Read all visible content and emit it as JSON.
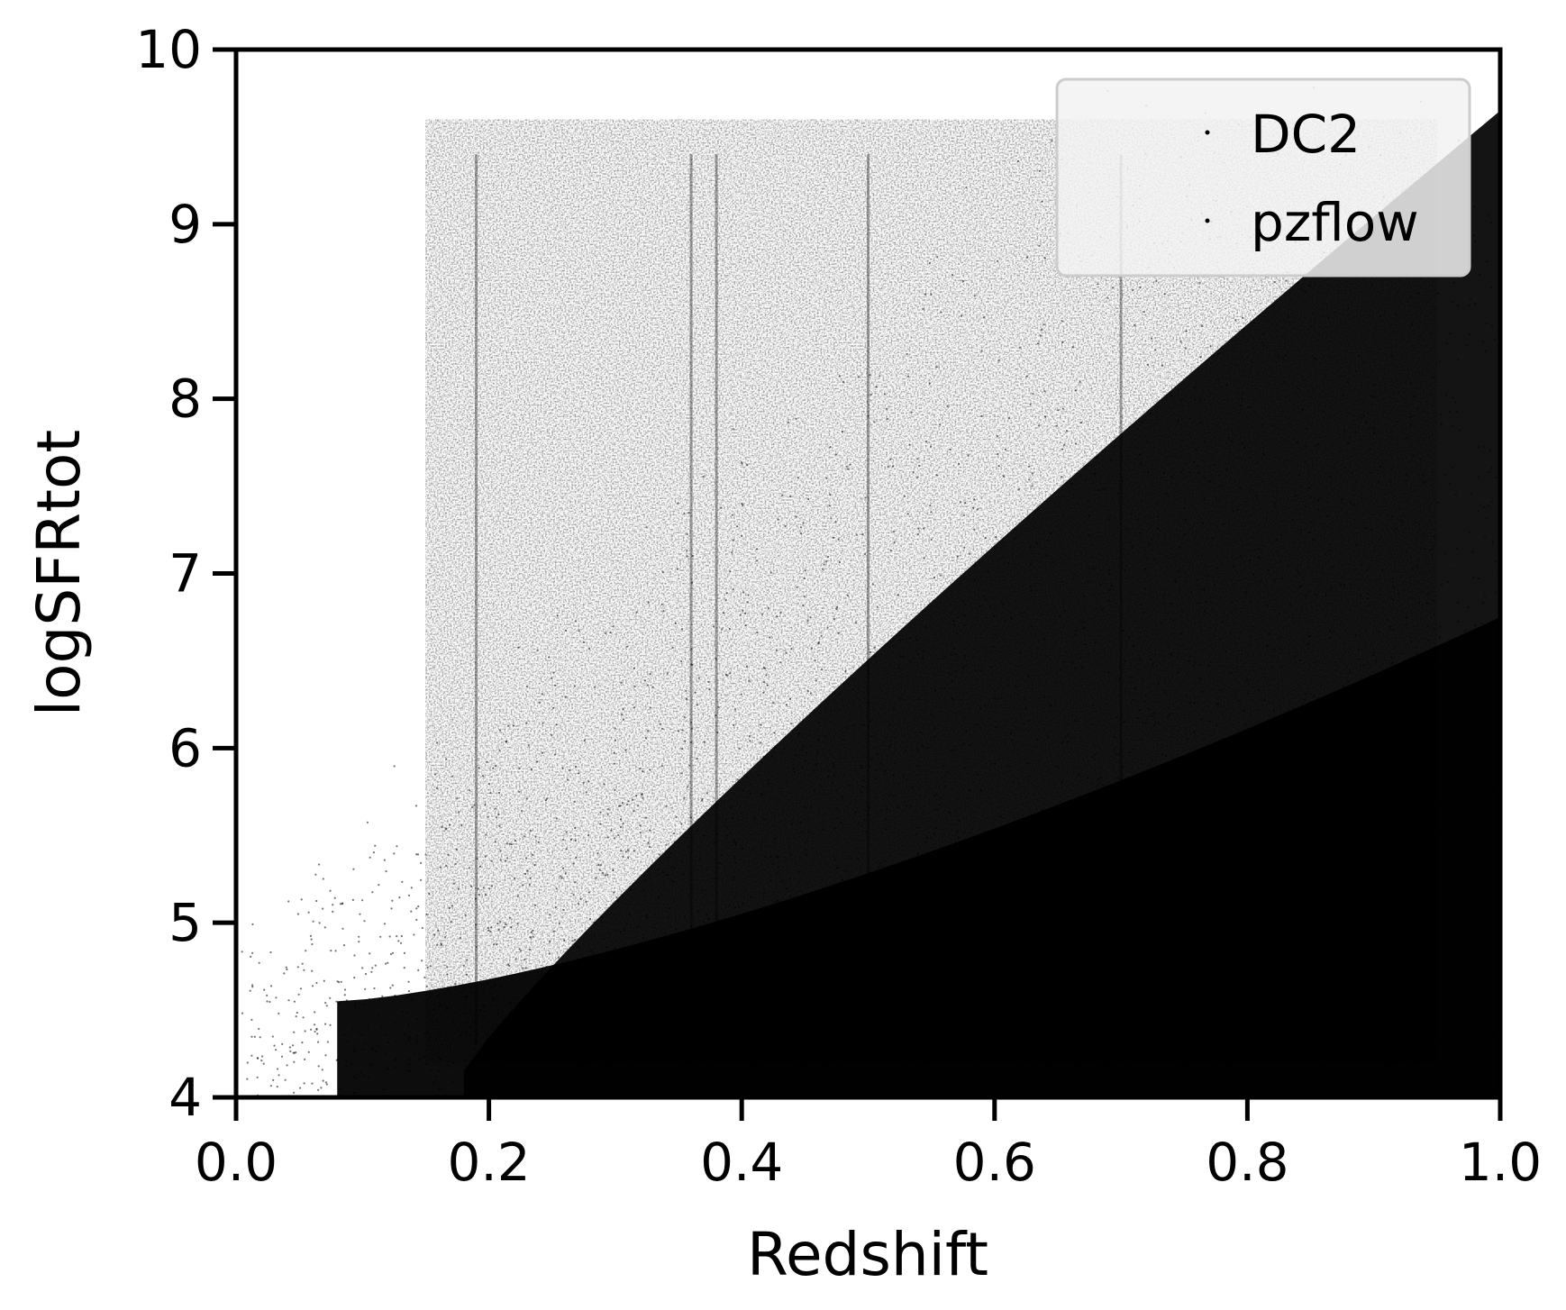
{
  "chart_data": {
    "type": "scatter",
    "title": "",
    "xlabel": "Redshift",
    "ylabel": "logSFRtot",
    "xlim": [
      0.0,
      1.0
    ],
    "ylim": [
      4,
      10
    ],
    "x_ticks": [
      "0.0",
      "0.2",
      "0.4",
      "0.6",
      "0.8",
      "1.0"
    ],
    "y_ticks": [
      "4",
      "5",
      "6",
      "7",
      "8",
      "9",
      "10"
    ],
    "grid": false,
    "legend_position": "top-right",
    "series": [
      {
        "name": "DC2",
        "color": "#000000"
      },
      {
        "name": "pzflow",
        "color": "#000000"
      }
    ]
  }
}
